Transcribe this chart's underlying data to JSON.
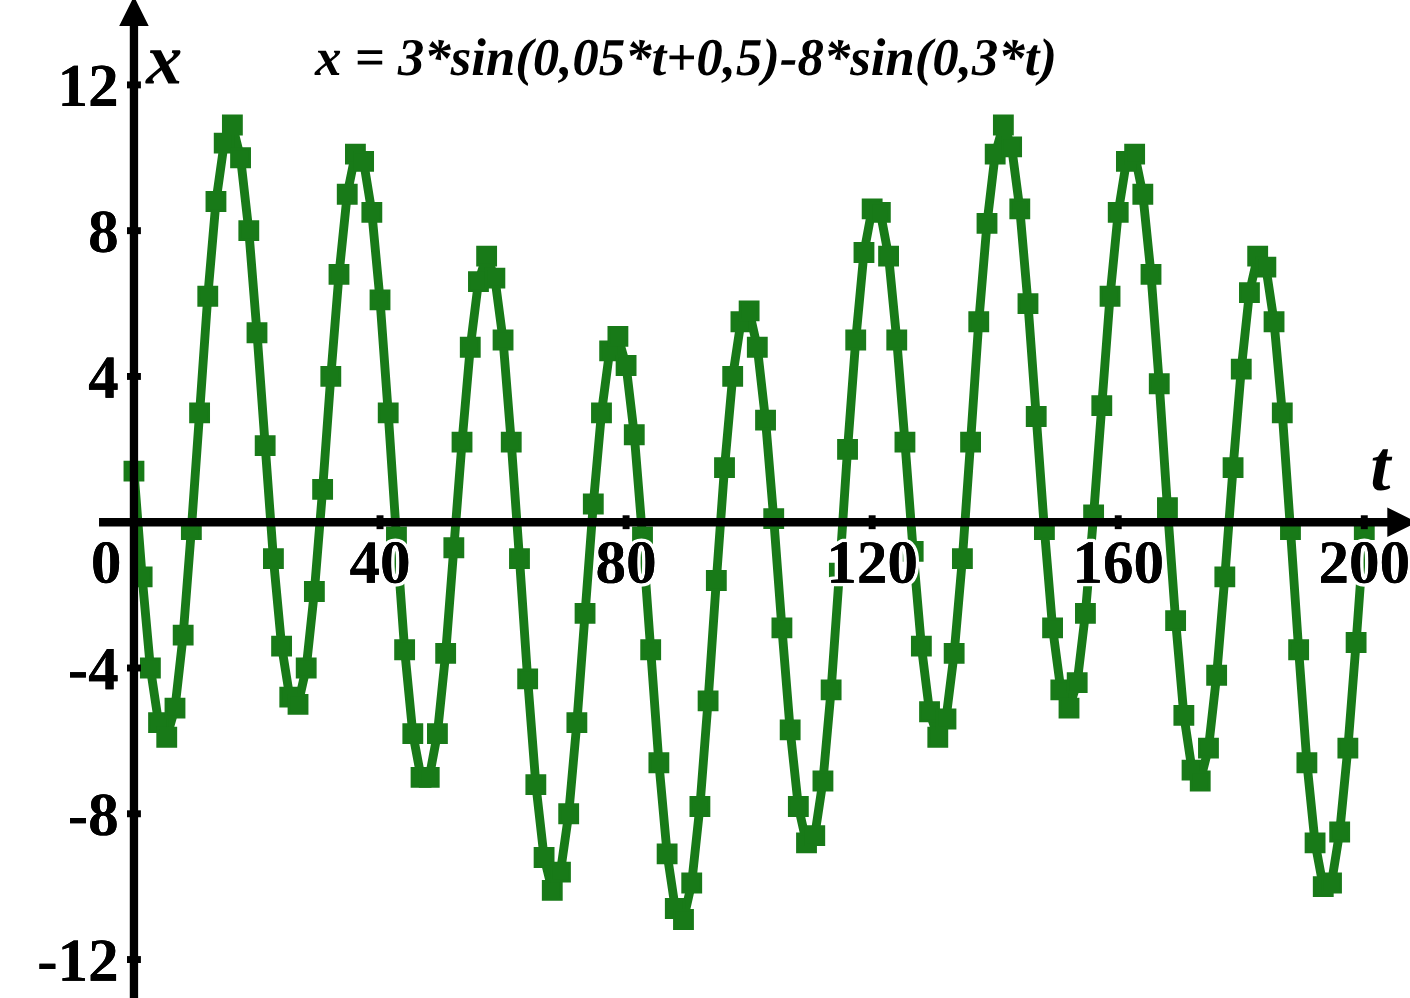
{
  "chart_data": {
    "type": "line",
    "title": "x = 3*sin(0,05*t+0,5)-8*sin(0,3*t)",
    "xlabel": "t",
    "ylabel": "x",
    "x": [
      0,
      1.33,
      2.67,
      4,
      5.33,
      6.67,
      8,
      9.33,
      10.67,
      12,
      13.33,
      14.67,
      16,
      17.33,
      18.67,
      20,
      21.33,
      22.67,
      24,
      25.33,
      26.67,
      28,
      29.33,
      30.67,
      32,
      33.33,
      34.67,
      36,
      37.33,
      38.67,
      40,
      41.33,
      42.67,
      44,
      45.33,
      46.67,
      48,
      49.33,
      50.67,
      52,
      53.33,
      54.67,
      56,
      57.33,
      58.67,
      60,
      61.33,
      62.67,
      64,
      65.33,
      66.67,
      68,
      69.33,
      70.67,
      72,
      73.33,
      74.67,
      76,
      77.33,
      78.67,
      80,
      81.33,
      82.67,
      84,
      85.33,
      86.67,
      88,
      89.33,
      90.67,
      92,
      93.33,
      94.67,
      96,
      97.33,
      98.67,
      100,
      101.33,
      102.67,
      104,
      105.33,
      106.67,
      108,
      109.33,
      110.67,
      112,
      113.33,
      114.67,
      116,
      117.33,
      118.67,
      120,
      121.33,
      122.67,
      124,
      125.33,
      126.67,
      128,
      129.33,
      130.67,
      132,
      133.33,
      134.67,
      136,
      137.33,
      138.67,
      140,
      141.33,
      142.67,
      144,
      145.33,
      146.67,
      148,
      149.33,
      150.67,
      152,
      153.33,
      154.67,
      156,
      157.33,
      158.67,
      160,
      161.33,
      162.67,
      164,
      165.33,
      166.67,
      168,
      169.33,
      170.67,
      172,
      173.33,
      174.67,
      176,
      177.33,
      178.67,
      180,
      181.33,
      182.67,
      184,
      185.33,
      186.67,
      188,
      189.33,
      190.67,
      192,
      193.33,
      194.67,
      196,
      197.33,
      198.67,
      200
    ],
    "series": [
      {
        "color": "#187a18",
        "values": [
          1.4,
          -1.5,
          -4.0,
          -5.5,
          -5.9,
          -5.1,
          -3.1,
          -0.2,
          3.0,
          6.2,
          8.8,
          10.4,
          10.9,
          10.0,
          8.0,
          5.2,
          2.1,
          -1.0,
          -3.4,
          -4.8,
          -5.0,
          -4.0,
          -1.9,
          0.9,
          4.0,
          6.8,
          9.0,
          10.1,
          9.9,
          8.5,
          6.1,
          3.0,
          -0.4,
          -3.5,
          -5.8,
          -7.0,
          -7.0,
          -5.8,
          -3.6,
          -0.7,
          2.2,
          4.8,
          6.6,
          7.3,
          6.7,
          5.0,
          2.2,
          -1.0,
          -4.3,
          -7.2,
          -9.2,
          -10.1,
          -9.6,
          -8.0,
          -5.5,
          -2.5,
          0.5,
          3.0,
          4.7,
          5.1,
          4.3,
          2.4,
          -0.4,
          -3.5,
          -6.6,
          -9.1,
          -10.6,
          -10.9,
          -9.9,
          -7.8,
          -4.9,
          -1.6,
          1.5,
          4.0,
          5.5,
          5.8,
          4.8,
          2.8,
          0.1,
          -2.9,
          -5.7,
          -7.8,
          -8.8,
          -8.6,
          -7.1,
          -4.6,
          -1.4,
          2.0,
          5.0,
          7.4,
          8.6,
          8.5,
          7.3,
          5.0,
          2.2,
          -0.8,
          -3.4,
          -5.2,
          -5.9,
          -5.4,
          -3.6,
          -1.0,
          2.2,
          5.5,
          8.2,
          10.1,
          10.9,
          10.3,
          8.6,
          6.0,
          2.9,
          -0.2,
          -2.9,
          -4.6,
          -5.1,
          -4.4,
          -2.5,
          0.2,
          3.2,
          6.2,
          8.5,
          9.9,
          10.1,
          9.0,
          6.8,
          3.8,
          0.4,
          -2.7,
          -5.3,
          -6.8,
          -7.1,
          -6.2,
          -4.2,
          -1.5,
          1.5,
          4.2,
          6.3,
          7.3,
          7.0,
          5.5,
          3.0,
          -0.2,
          -3.5,
          -6.6,
          -8.8,
          -10.0,
          -9.9,
          -8.5,
          -6.2,
          -3.3,
          -0.2
        ]
      }
    ],
    "xlim": [
      -5,
      206
    ],
    "ylim": [
      -13,
      14
    ],
    "xticks": [
      0,
      40,
      80,
      120,
      160,
      200
    ],
    "yticks": [
      -12,
      -8,
      -4,
      4,
      8,
      12
    ],
    "grid": false,
    "legend": false,
    "marker": "square",
    "line_style": "solid"
  }
}
